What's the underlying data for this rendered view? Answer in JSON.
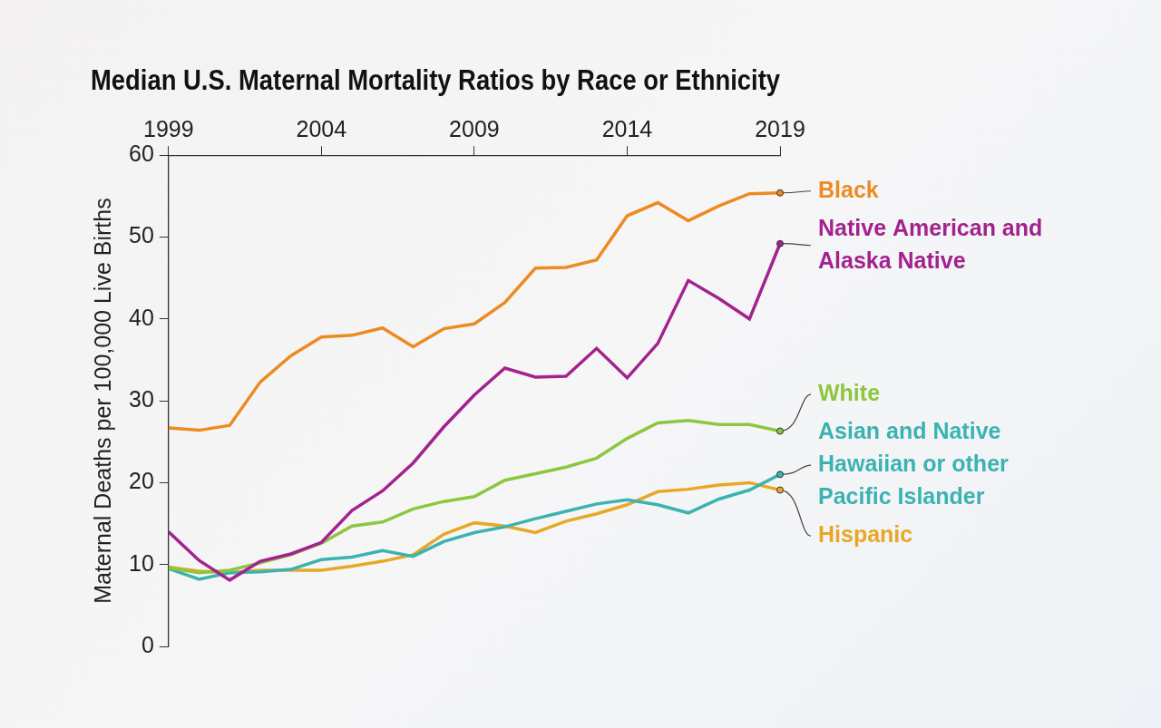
{
  "chart_data": {
    "type": "line",
    "title": "Median U.S. Maternal Mortality Ratios by Race or Ethnicity",
    "y_label": "Maternal Deaths per 100,000 Live Births",
    "x": [
      1999,
      2000,
      2001,
      2002,
      2003,
      2004,
      2005,
      2006,
      2007,
      2008,
      2009,
      2010,
      2011,
      2012,
      2013,
      2014,
      2015,
      2016,
      2017,
      2018,
      2019
    ],
    "series": [
      {
        "name": "Black",
        "color": "#ee8a22",
        "values": [
          26.7,
          26.4,
          27,
          32.3,
          35.5,
          37.8,
          38,
          38.9,
          36.6,
          38.8,
          39.4,
          42,
          46.2,
          46.3,
          47.2,
          52.6,
          54.2,
          52,
          53.8,
          55.3,
          55.4
        ]
      },
      {
        "name": "Native American and Alaska Native",
        "color": "#a3228e",
        "values": [
          14,
          10.5,
          8.1,
          10.4,
          11.3,
          12.7,
          16.6,
          19,
          22.4,
          26.8,
          30.7,
          34,
          32.9,
          33,
          36.4,
          32.8,
          37,
          44.7,
          42.5,
          40,
          49.2
        ]
      },
      {
        "name": "White",
        "color": "#8dc63f",
        "values": [
          9.6,
          9,
          9.3,
          10.2,
          11.2,
          12.6,
          14.7,
          15.2,
          16.8,
          17.7,
          18.3,
          20.3,
          21.1,
          21.9,
          23,
          25.4,
          27.3,
          27.6,
          27.1,
          27.1,
          26.3
        ]
      },
      {
        "name": "Asian and Native Hawaiian or other Pacific Islander",
        "color": "#3bb3b0",
        "values": [
          9.5,
          8.2,
          9,
          9.1,
          9.4,
          10.6,
          10.9,
          11.7,
          11,
          12.8,
          13.9,
          14.6,
          15.6,
          16.5,
          17.4,
          17.9,
          17.3,
          16.3,
          18,
          19.1,
          21
        ]
      },
      {
        "name": "Hispanic",
        "color": "#e8a825",
        "values": [
          9.7,
          9.2,
          9,
          9.3,
          9.3,
          9.3,
          9.8,
          10.4,
          11.2,
          13.7,
          15.1,
          14.7,
          13.9,
          15.3,
          16.2,
          17.3,
          18.9,
          19.2,
          19.7,
          20,
          19.1
        ]
      }
    ],
    "xlim": [
      1999,
      2019
    ],
    "xticks": [
      1999,
      2004,
      2009,
      2014,
      2019
    ],
    "ylim": [
      0,
      60
    ],
    "yticks": [
      0,
      10,
      20,
      30,
      40,
      50,
      60
    ],
    "grid": false
  }
}
